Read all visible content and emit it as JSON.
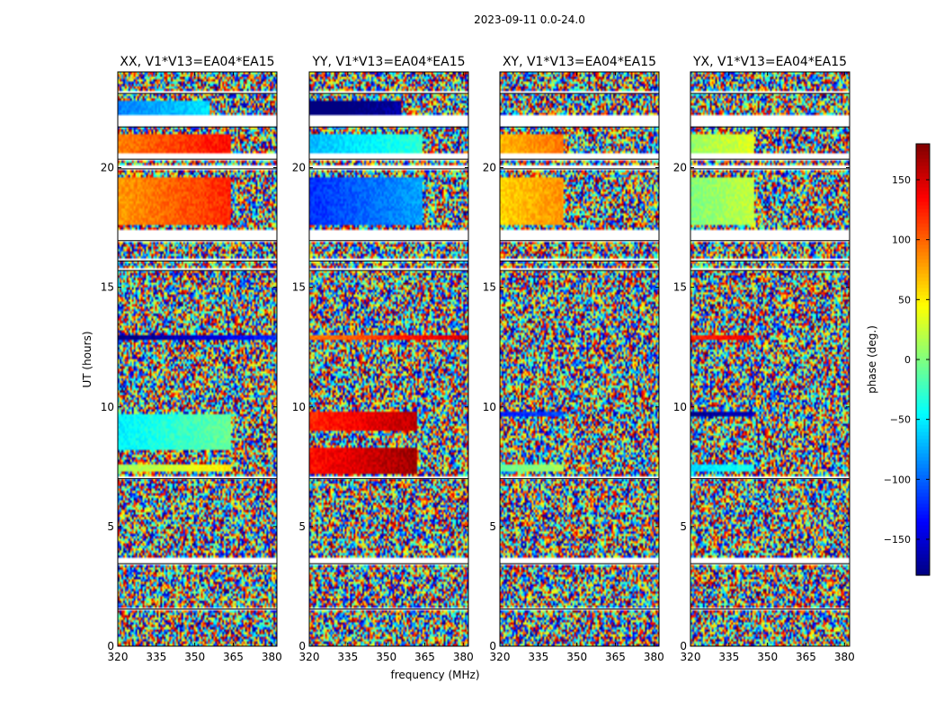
{
  "figure": {
    "suptitle": "2023-09-11 0.0-24.0",
    "xlabel": "frequency (MHz)",
    "ylabel": "UT (hours)"
  },
  "chart_data": {
    "type": "heatmap",
    "colormap": "jet",
    "xlim": [
      320,
      382
    ],
    "ylim": [
      0,
      24
    ],
    "xticks": [
      320,
      335,
      350,
      365,
      380
    ],
    "yticks": [
      0,
      5,
      10,
      15,
      20
    ],
    "panels": [
      {
        "title": "XX, V1*V13=EA04*EA15",
        "show_ylabel": true,
        "bands": [
          {
            "from": 7.3,
            "to": 7.6,
            "phase": 40,
            "coherent_until": 364
          },
          {
            "from": 8.2,
            "to": 9.7,
            "phase": -20,
            "coherent_until": 364
          },
          {
            "from": 12.8,
            "to": 13.0,
            "phase": -150,
            "coherent_until": 382
          },
          {
            "from": 17.6,
            "to": 19.6,
            "phase": 110,
            "coherent_until": 364
          },
          {
            "from": 20.6,
            "to": 21.4,
            "phase": 120,
            "coherent_until": 364
          },
          {
            "from": 22.2,
            "to": 22.8,
            "phase": -60,
            "coherent_until": 356
          }
        ]
      },
      {
        "title": "YY, V1*V13=EA04*EA15",
        "show_ylabel": false,
        "bands": [
          {
            "from": 7.2,
            "to": 8.3,
            "phase": 160,
            "coherent_until": 362
          },
          {
            "from": 9.0,
            "to": 9.8,
            "phase": 150,
            "coherent_until": 362
          },
          {
            "from": 12.8,
            "to": 13.0,
            "phase": 120,
            "coherent_until": 382
          },
          {
            "from": 17.6,
            "to": 19.6,
            "phase": -90,
            "coherent_until": 364
          },
          {
            "from": 20.6,
            "to": 21.4,
            "phase": -40,
            "coherent_until": 364
          },
          {
            "from": 22.2,
            "to": 22.8,
            "phase": -170,
            "coherent_until": 356
          }
        ]
      },
      {
        "title": "XY, V1*V13=EA04*EA15",
        "show_ylabel": false,
        "bands": [
          {
            "from": 7.3,
            "to": 7.6,
            "phase": 20,
            "coherent_until": 345
          },
          {
            "from": 9.6,
            "to": 9.8,
            "phase": -100,
            "coherent_until": 345
          },
          {
            "from": 17.6,
            "to": 19.6,
            "phase": 90,
            "coherent_until": 345
          },
          {
            "from": 20.6,
            "to": 21.4,
            "phase": 100,
            "coherent_until": 345
          }
        ]
      },
      {
        "title": "YX, V1*V13=EA04*EA15",
        "show_ylabel": false,
        "bands": [
          {
            "from": 7.3,
            "to": 7.6,
            "phase": -30,
            "coherent_until": 345
          },
          {
            "from": 9.6,
            "to": 9.8,
            "phase": -150,
            "coherent_until": 345
          },
          {
            "from": 12.8,
            "to": 13.0,
            "phase": 150,
            "coherent_until": 345
          },
          {
            "from": 17.6,
            "to": 19.6,
            "phase": 30,
            "coherent_until": 345
          },
          {
            "from": 20.6,
            "to": 21.4,
            "phase": 40,
            "coherent_until": 345
          }
        ]
      }
    ],
    "gaps": [
      {
        "from": 1.55,
        "to": 1.62
      },
      {
        "from": 3.45,
        "to": 3.7
      },
      {
        "from": 7.0,
        "to": 7.1
      },
      {
        "from": 15.7,
        "to": 15.8
      },
      {
        "from": 16.1,
        "to": 16.2
      },
      {
        "from": 16.95,
        "to": 17.35
      },
      {
        "from": 19.95,
        "to": 20.1
      },
      {
        "from": 20.35,
        "to": 20.55
      },
      {
        "from": 21.7,
        "to": 22.15
      },
      {
        "from": 23.1,
        "to": 23.2
      }
    ],
    "colorbar": {
      "label": "phase (deg.)",
      "range": [
        -180,
        180
      ],
      "ticks": [
        -150,
        -100,
        -50,
        0,
        50,
        100,
        150
      ]
    }
  }
}
